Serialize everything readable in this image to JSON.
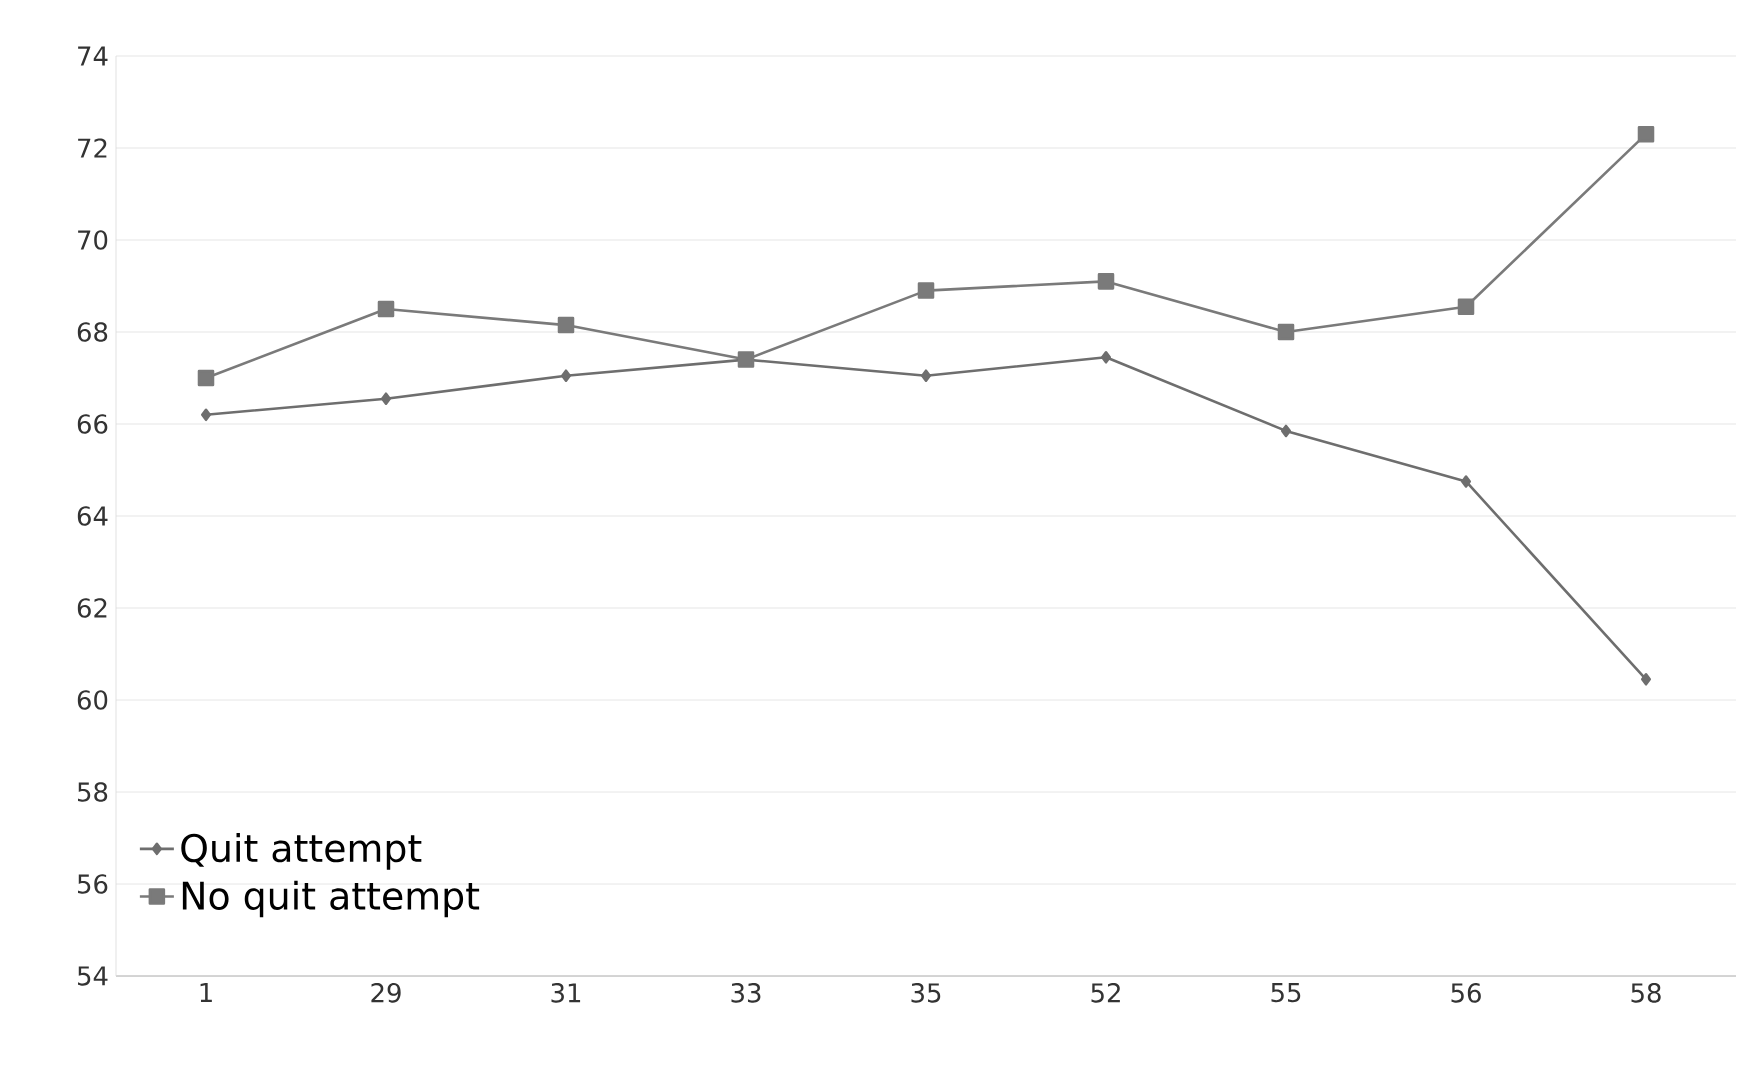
{
  "chart_data": {
    "type": "line",
    "categories": [
      "1",
      "29",
      "31",
      "33",
      "35",
      "52",
      "55",
      "56",
      "58"
    ],
    "series": [
      {
        "name": "Quit attempt",
        "color": "#6e6e6e",
        "marker": "diamond",
        "values": [
          66.2,
          66.55,
          67.05,
          67.4,
          67.05,
          67.45,
          65.85,
          64.75,
          60.45
        ]
      },
      {
        "name": "No quit attempt",
        "color": "#7a7a7a",
        "marker": "square",
        "values": [
          67.0,
          68.5,
          68.15,
          67.4,
          68.9,
          69.1,
          68.0,
          68.55,
          72.3
        ]
      }
    ],
    "ylim": [
      54,
      74
    ],
    "yticks": [
      54,
      56,
      58,
      60,
      62,
      64,
      66,
      68,
      70,
      72,
      74
    ],
    "grid": "y",
    "legend": "bottom left",
    "line_style": "solid"
  }
}
